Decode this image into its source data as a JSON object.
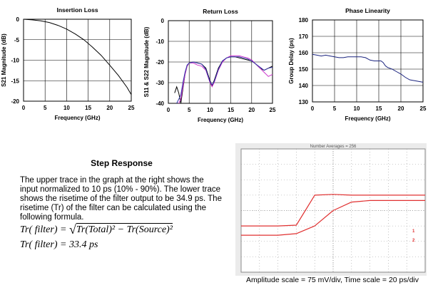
{
  "chart_data": [
    {
      "type": "line",
      "title": "Insertion Loss",
      "xlabel": "Frequency (GHz)",
      "ylabel": "S21 Magnitude (dB)",
      "xlim": [
        0,
        25
      ],
      "ylim": [
        -20,
        0
      ],
      "xticks": [
        "0",
        "5",
        "10",
        "15",
        "20",
        "25"
      ],
      "yticks": [
        "0",
        "-5",
        "-10",
        "-15",
        "-20"
      ],
      "grid": true,
      "series": [
        {
          "x": [
            0,
            2,
            4,
            6,
            8,
            10,
            12,
            14,
            16,
            18,
            20,
            22,
            24,
            25
          ],
          "y": [
            0,
            -0.15,
            -0.4,
            -0.8,
            -1.5,
            -2.4,
            -3.6,
            -5.0,
            -6.8,
            -8.8,
            -11.2,
            -13.7,
            -16.6,
            -18.4
          ],
          "color": "#000000"
        }
      ]
    },
    {
      "type": "line",
      "title": "Return Loss",
      "xlabel": "Frequency (GHz)",
      "ylabel": "S11 & S22 Magnitude (dB)",
      "xlim": [
        0,
        25
      ],
      "ylim": [
        -40,
        0
      ],
      "xticks": [
        "0",
        "5",
        "10",
        "15",
        "20",
        "25"
      ],
      "yticks": [
        "0",
        "-10",
        "-20",
        "-30",
        "-40"
      ],
      "grid": true,
      "series": [
        {
          "x": [
            1.5,
            2,
            2.5,
            3,
            3.5,
            4,
            4.5,
            5,
            6,
            7,
            8,
            9,
            10,
            10.5,
            11,
            12,
            13,
            14,
            15,
            16,
            17,
            18,
            19,
            20,
            21,
            22,
            23,
            24,
            25
          ],
          "y": [
            -35,
            -32,
            -35,
            -40,
            -33,
            -26,
            -22,
            -20.5,
            -20,
            -20.5,
            -21,
            -23,
            -29,
            -31.5,
            -29,
            -23,
            -19.5,
            -18,
            -17.5,
            -17.5,
            -18,
            -18.5,
            -19,
            -19.5,
            -21,
            -23,
            -24,
            -23,
            -22
          ],
          "color": "#000000"
        },
        {
          "x": [
            2.5,
            3,
            3.5,
            4,
            4.5,
            5,
            6,
            7,
            8,
            9,
            10,
            10.5,
            11,
            12,
            13,
            14,
            15,
            16,
            17,
            18,
            19,
            20,
            21,
            22,
            23,
            24,
            25
          ],
          "y": [
            -40,
            -38,
            -32,
            -26,
            -22,
            -20.5,
            -20.5,
            -21.5,
            -22,
            -24,
            -30,
            -32,
            -30,
            -24,
            -20,
            -18,
            -17,
            -17,
            -17,
            -17.5,
            -18,
            -19,
            -21,
            -23,
            -25,
            -27,
            -26
          ],
          "color": "#cc33cc"
        },
        {
          "x": [
            2,
            2.5,
            3,
            3.5,
            4,
            4.5,
            5,
            6,
            7,
            8,
            9,
            10,
            10.5,
            11,
            12,
            13,
            14,
            15,
            16,
            17,
            18,
            19,
            20,
            21,
            22,
            23,
            24,
            25
          ],
          "y": [
            -40,
            -38,
            -36,
            -30,
            -25,
            -21.5,
            -20.5,
            -20,
            -20.5,
            -21,
            -23.5,
            -29.5,
            -31,
            -29.5,
            -23.5,
            -19.5,
            -18,
            -17.5,
            -17.5,
            -17.5,
            -18,
            -18.5,
            -19.5,
            -21,
            -22.5,
            -24,
            -23,
            -22.5
          ],
          "color": "#3333aa"
        }
      ]
    },
    {
      "type": "line",
      "title": "Phase Linearity",
      "xlabel": "Frequency (GHz)",
      "ylabel": "Group Delay (ps)",
      "xlim": [
        0,
        25
      ],
      "ylim": [
        130,
        180
      ],
      "xticks": [
        "0",
        "5",
        "10",
        "15",
        "20",
        "25"
      ],
      "yticks": [
        "180",
        "170",
        "160",
        "150",
        "140",
        "130"
      ],
      "grid": true,
      "series": [
        {
          "x": [
            0,
            1,
            2,
            3,
            4,
            5,
            6,
            7,
            8,
            9,
            10,
            11,
            12,
            13,
            14,
            15,
            15.5,
            16,
            16.5,
            17,
            18,
            19,
            20,
            21,
            22,
            23,
            24,
            25
          ],
          "y": [
            159,
            158.5,
            158,
            158.5,
            158,
            157.5,
            157,
            157,
            157.5,
            157.5,
            157.5,
            157.5,
            157,
            155.5,
            155,
            155,
            155,
            154,
            152,
            151,
            150,
            148.5,
            147,
            145,
            143.5,
            143,
            142.5,
            142
          ],
          "color": "#1a237e"
        }
      ]
    }
  ],
  "step": {
    "title": "Step Response",
    "body": "The upper trace in the graph at the right shows the input normalized to 10 ps (10% - 90%).  The lower trace shows the risetime of the filter output to be 34.9 ps.  The risetime (Tr) of the filter can be calculated using the following formula.",
    "formula1_lhs": "Tr( filter) = ",
    "formula1_radicand": "Tr(Total)² − Tr(Source)²",
    "formula2": "Tr( filter) = 33.4 ps"
  },
  "scope": {
    "header": "Number Averages = 256",
    "marker_1": "1",
    "marker_2": "2",
    "caption": "Amplitude scale = 75 mV/div, Time scale = 20 ps/div",
    "x": [
      0,
      1,
      2,
      3,
      4,
      5,
      6,
      7,
      8,
      9,
      10
    ],
    "trace_input": [
      -1.0,
      -1.0,
      -1.0,
      -0.95,
      1.0,
      1.05,
      1.0,
      1.0,
      1.0,
      1.0,
      1.0
    ],
    "trace_output": [
      -1.6,
      -1.6,
      -1.6,
      -1.5,
      -1.0,
      0.0,
      0.55,
      0.65,
      0.65,
      0.65,
      0.65
    ]
  },
  "colors": {
    "trace_red": "#e03030",
    "grid_dot": "#9a9a9a",
    "rl_pink": "#cc33cc",
    "rl_blue": "#3333aa",
    "gd_blue": "#1a237e"
  }
}
